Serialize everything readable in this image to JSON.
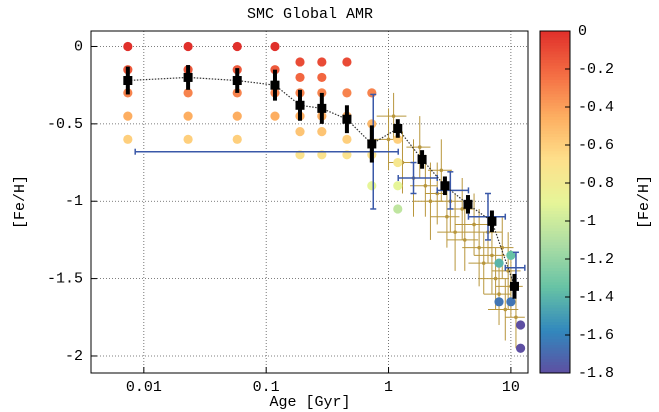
{
  "chart_data": {
    "type": "scatter",
    "title": "SMC Global AMR",
    "x_label": "Age [Gyr]",
    "y_label": "[Fe/H]",
    "colorbar_label": "[Fe/H]",
    "xscale": "log",
    "xlim": [
      0.0037,
      13.8
    ],
    "ylim": [
      -2.11,
      0.1
    ],
    "xticks": [
      0.01,
      0.1,
      1,
      10
    ],
    "yticks": [
      0,
      -0.5,
      -1,
      -1.5,
      -2
    ],
    "grid": true,
    "clim": [
      -1.8,
      0
    ],
    "cticks": [
      0,
      -0.2,
      -0.4,
      -0.6,
      -0.8,
      -1,
      -1.2,
      -1.4,
      -1.6,
      -1.8
    ],
    "colormap": [
      "#5e4fa2",
      "#3288bd",
      "#66c2a5",
      "#abdda4",
      "#e6f598",
      "#fee08b",
      "#fdae61",
      "#f46d43",
      "#e0302b"
    ],
    "points": {
      "x": [
        0.0074,
        0.0074,
        0.0074,
        0.0074,
        0.0074,
        0.023,
        0.023,
        0.023,
        0.023,
        0.023,
        0.058,
        0.058,
        0.058,
        0.058,
        0.058,
        0.118,
        0.118,
        0.118,
        0.118,
        0.189,
        0.189,
        0.189,
        0.189,
        0.189,
        0.189,
        0.285,
        0.285,
        0.285,
        0.285,
        0.285,
        0.285,
        0.457,
        0.457,
        0.457,
        0.457,
        0.457,
        0.73,
        0.73,
        0.73,
        0.73,
        1.19,
        1.19,
        1.19,
        1.19,
        8,
        8,
        10,
        10,
        12,
        12
      ],
      "y": [
        0,
        -0.15,
        -0.3,
        -0.45,
        -0.6,
        0,
        -0.15,
        -0.3,
        -0.45,
        -0.6,
        0,
        -0.15,
        -0.3,
        -0.45,
        -0.6,
        0,
        -0.15,
        -0.3,
        -0.45,
        -0.1,
        -0.2,
        -0.3,
        -0.45,
        -0.55,
        -0.7,
        -0.1,
        -0.2,
        -0.3,
        -0.45,
        -0.55,
        -0.7,
        -0.1,
        -0.3,
        -0.45,
        -0.6,
        -0.7,
        -0.3,
        -0.5,
        -0.7,
        -0.9,
        -0.6,
        -0.75,
        -0.9,
        -1.05,
        -1.4,
        -1.65,
        -1.35,
        -1.65,
        -1.8,
        -1.95
      ]
    },
    "clusters": {
      "color": "#b8963c",
      "x": [
        1.0,
        1.3,
        1.6,
        2.0,
        2.2,
        2.5,
        3.0,
        3.2,
        3.5,
        4,
        4.2,
        5,
        5.5,
        6,
        6.5,
        7,
        7.5,
        8,
        8.5,
        9,
        9.5,
        10,
        11,
        1.1,
        1.8,
        2.7
      ],
      "y": [
        -0.6,
        -0.75,
        -0.85,
        -0.9,
        -1.0,
        -0.95,
        -1.1,
        -1.0,
        -1.2,
        -1.05,
        -1.25,
        -1.15,
        -1.3,
        -1.4,
        -1.2,
        -1.35,
        -1.5,
        -1.6,
        -1.3,
        -1.7,
        -1.45,
        -1.55,
        -1.75,
        -0.45,
        -0.65,
        -0.8
      ],
      "xerr": [
        0.3,
        0.3,
        0.4,
        0.5,
        0.6,
        0.5,
        0.8,
        0.8,
        1,
        1,
        1.2,
        1.5,
        1.5,
        1.5,
        2,
        2,
        2,
        2,
        2,
        2.5,
        2.5,
        2.5,
        2,
        0.3,
        0.4,
        0.6
      ],
      "yerr": [
        0.2,
        0.2,
        0.25,
        0.2,
        0.25,
        0.2,
        0.2,
        0.2,
        0.25,
        0.2,
        0.2,
        0.2,
        0.25,
        0.2,
        0.2,
        0.25,
        0.2,
        0.2,
        0.2,
        0.2,
        0.25,
        0.2,
        0.2,
        0.15,
        0.2,
        0.2
      ]
    },
    "bins": {
      "color": "#3a58a8",
      "x": [
        0.75,
        1.6,
        3.2,
        6.5,
        11
      ],
      "y": [
        -0.68,
        -0.85,
        -0.93,
        -1.1,
        -1.43
      ],
      "x_low": [
        0.0085,
        1.2,
        2.5,
        4.5,
        9
      ],
      "x_high": [
        1.2,
        2.5,
        4.5,
        9,
        13
      ],
      "yerr": [
        0.37,
        0.1,
        0.12,
        0.15,
        0.1
      ]
    },
    "amr": {
      "color": "#000000",
      "x": [
        0.0074,
        0.023,
        0.058,
        0.118,
        0.189,
        0.285,
        0.457,
        0.73,
        1.19,
        1.88,
        2.89,
        4.46,
        7.0,
        10.7
      ],
      "y": [
        -0.22,
        -0.2,
        -0.22,
        -0.25,
        -0.38,
        -0.4,
        -0.47,
        -0.63,
        -0.53,
        -0.73,
        -0.9,
        -1.02,
        -1.13,
        -1.55
      ],
      "yerr": [
        0.09,
        0.08,
        0.08,
        0.1,
        0.1,
        0.1,
        0.09,
        0.12,
        0.06,
        0.06,
        0.06,
        0.06,
        0.07,
        0.08
      ]
    }
  }
}
